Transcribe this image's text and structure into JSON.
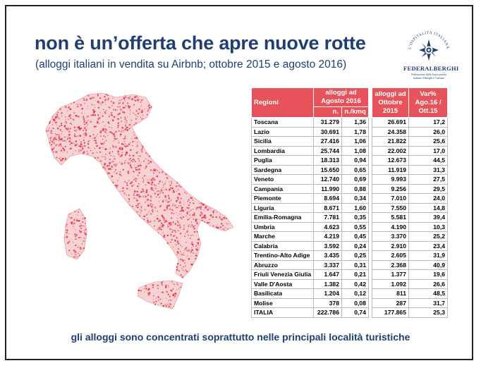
{
  "slide": {
    "title": "non è un’offerta che apre nuove rotte",
    "subtitle": "(alloggi italiani in vendita su Airbnb; ottobre 2015 e agosto 2016)",
    "footer": "gli alloggi sono concentrati soprattutto nelle principali località turistiche"
  },
  "logo": {
    "arc_text": "L’OSPITALITÀ ITALIANA",
    "name": "FEDERALBERGHI",
    "tagline_1": "Federazione delle Associazioni",
    "tagline_2": "Italiane Alberghi e Turismo"
  },
  "colors": {
    "title": "#1f3f73",
    "header_fill": "#e8525a",
    "map_dots": "#e3323e"
  },
  "table": {
    "headers": {
      "regioni": "Regioni",
      "agosto_group": "alloggi ad Agosto 2016",
      "n": "n.",
      "kmq": "n./kmq",
      "ottobre": "alloggi ad Ottobre 2015",
      "var": "Var% Ago.16 / Ott.15"
    },
    "rows": [
      {
        "region": "Toscana",
        "n": "31.279",
        "kmq": "1,36",
        "ott": "26.691",
        "var": "17,2"
      },
      {
        "region": "Lazio",
        "n": "30.691",
        "kmq": "1,78",
        "ott": "24.358",
        "var": "26,0"
      },
      {
        "region": "Sicilia",
        "n": "27.416",
        "kmq": "1,06",
        "ott": "21.822",
        "var": "25,6"
      },
      {
        "region": "Lombardia",
        "n": "25.744",
        "kmq": "1,08",
        "ott": "22.002",
        "var": "17,0"
      },
      {
        "region": "Puglia",
        "n": "18.313",
        "kmq": "0,94",
        "ott": "12.673",
        "var": "44,5"
      },
      {
        "region": "Sardegna",
        "n": "15.650",
        "kmq": "0,65",
        "ott": "11.919",
        "var": "31,3"
      },
      {
        "region": "Veneto",
        "n": "12.740",
        "kmq": "0,69",
        "ott": "9.993",
        "var": "27,5"
      },
      {
        "region": "Campania",
        "n": "11.990",
        "kmq": "0,88",
        "ott": "9.256",
        "var": "29,5"
      },
      {
        "region": "Piemonte",
        "n": "8.694",
        "kmq": "0,34",
        "ott": "7.010",
        "var": "24,0"
      },
      {
        "region": "Liguria",
        "n": "8.671",
        "kmq": "1,60",
        "ott": "7.550",
        "var": "14,8"
      },
      {
        "region": "Emilia-Romagna",
        "n": "7.781",
        "kmq": "0,35",
        "ott": "5.581",
        "var": "39,4"
      },
      {
        "region": "Umbria",
        "n": "4.623",
        "kmq": "0,55",
        "ott": "4.190",
        "var": "10,3"
      },
      {
        "region": "Marche",
        "n": "4.219",
        "kmq": "0,45",
        "ott": "3.370",
        "var": "25,2"
      },
      {
        "region": "Calabria",
        "n": "3.592",
        "kmq": "0,24",
        "ott": "2.910",
        "var": "23,4"
      },
      {
        "region": "Trentino-Alto Adige",
        "n": "3.435",
        "kmq": "0,25",
        "ott": "2.605",
        "var": "31,9"
      },
      {
        "region": "Abruzzo",
        "n": "3.337",
        "kmq": "0,31",
        "ott": "2.368",
        "var": "40,9"
      },
      {
        "region": "Friuli Venezia Giulia",
        "n": "1.647",
        "kmq": "0,21",
        "ott": "1.377",
        "var": "19,6"
      },
      {
        "region": "Valle D'Aosta",
        "n": "1.382",
        "kmq": "0,42",
        "ott": "1.092",
        "var": "26,6"
      },
      {
        "region": "Basilicata",
        "n": "1.204",
        "kmq": "0,12",
        "ott": "811",
        "var": "48,5"
      },
      {
        "region": "Molise",
        "n": "378",
        "kmq": "0,08",
        "ott": "287",
        "var": "31,7"
      },
      {
        "region": "ITALIA",
        "n": "222.786",
        "kmq": "0,74",
        "ott": "177.865",
        "var": "25,3"
      }
    ]
  }
}
